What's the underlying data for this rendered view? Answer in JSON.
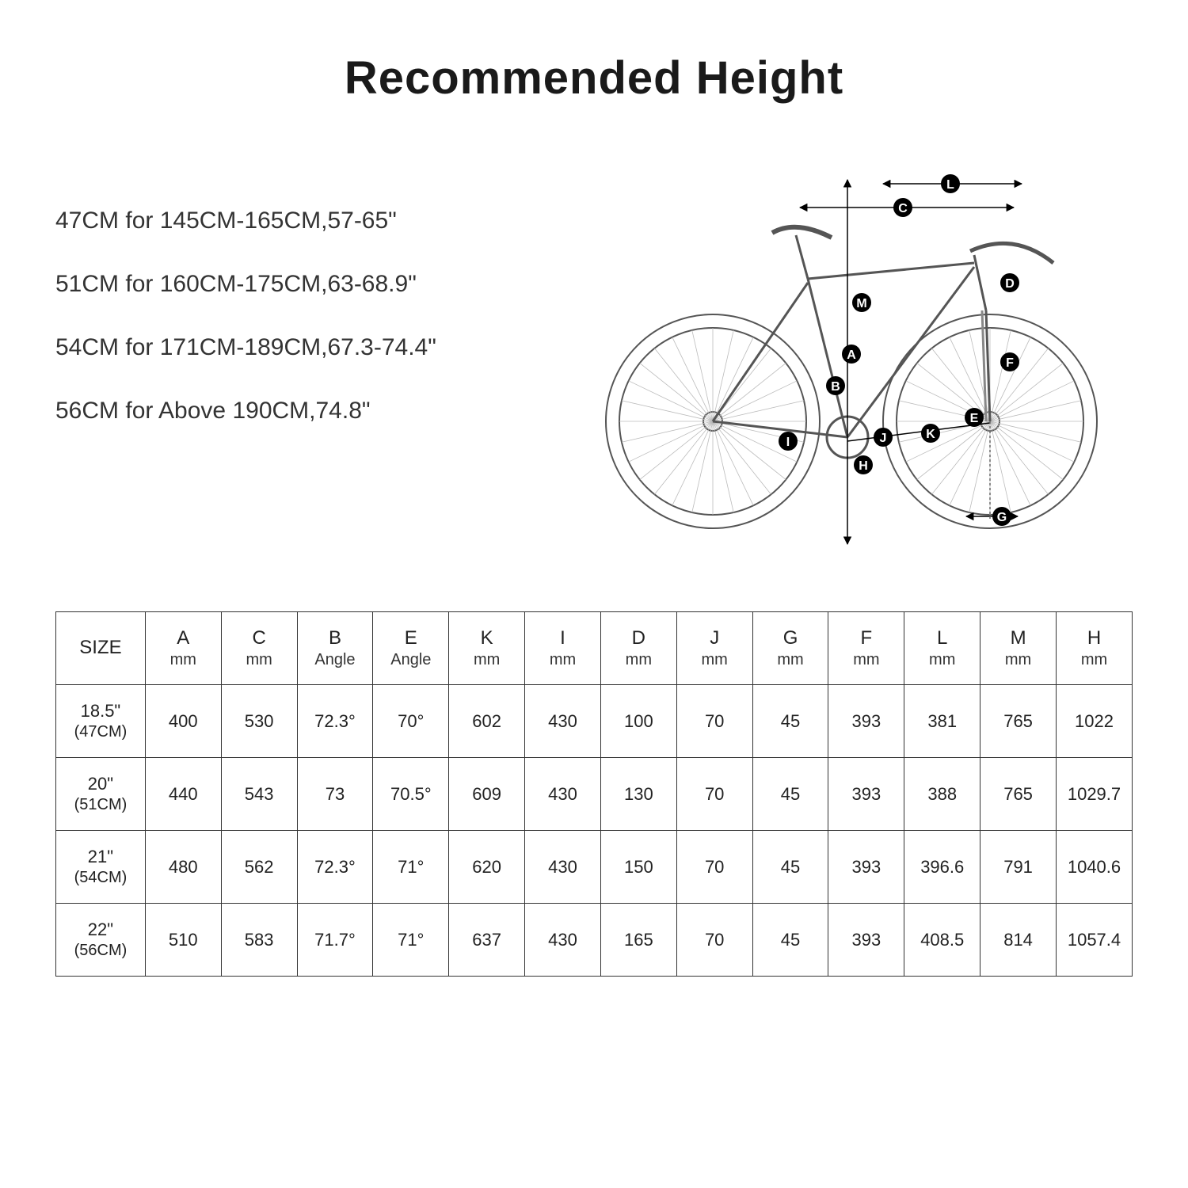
{
  "title": "Recommended  Height",
  "recommendations": [
    "47CM for 145CM-165CM,57-65\"",
    "51CM for 160CM-175CM,63-68.9\"",
    "54CM for 171CM-189CM,67.3-74.4\"",
    "56CM for Above 190CM,74.8\""
  ],
  "diagram": {
    "type": "bike-geometry-sketch",
    "stroke": "#555555",
    "label_fill": "#000000",
    "label_text": "#ffffff",
    "label_radius": 12,
    "labels": [
      "A",
      "B",
      "C",
      "D",
      "E",
      "F",
      "G",
      "H",
      "I",
      "J",
      "K",
      "L",
      "M"
    ]
  },
  "table": {
    "border_color": "#333333",
    "text_color": "#222222",
    "columns": [
      {
        "main": "SIZE",
        "sub": ""
      },
      {
        "main": "A",
        "sub": "mm"
      },
      {
        "main": "C",
        "sub": "mm"
      },
      {
        "main": "B",
        "sub": "Angle"
      },
      {
        "main": "E",
        "sub": "Angle"
      },
      {
        "main": "K",
        "sub": "mm"
      },
      {
        "main": "I",
        "sub": "mm"
      },
      {
        "main": "D",
        "sub": "mm"
      },
      {
        "main": "J",
        "sub": "mm"
      },
      {
        "main": "G",
        "sub": "mm"
      },
      {
        "main": "F",
        "sub": "mm"
      },
      {
        "main": "L",
        "sub": "mm"
      },
      {
        "main": "M",
        "sub": "mm"
      },
      {
        "main": "H",
        "sub": "mm"
      }
    ],
    "rows": [
      {
        "size_main": "18.5\"",
        "size_sub": "(47CM)",
        "cells": [
          "400",
          "530",
          "72.3°",
          "70°",
          "602",
          "430",
          "100",
          "70",
          "45",
          "393",
          "381",
          "765",
          "1022"
        ]
      },
      {
        "size_main": "20\"",
        "size_sub": "(51CM)",
        "cells": [
          "440",
          "543",
          "73",
          "70.5°",
          "609",
          "430",
          "130",
          "70",
          "45",
          "393",
          "388",
          "765",
          "1029.7"
        ]
      },
      {
        "size_main": "21\"",
        "size_sub": "(54CM)",
        "cells": [
          "480",
          "562",
          "72.3°",
          "71°",
          "620",
          "430",
          "150",
          "70",
          "45",
          "393",
          "396.6",
          "791",
          "1040.6"
        ]
      },
      {
        "size_main": "22\"",
        "size_sub": "(56CM)",
        "cells": [
          "510",
          "583",
          "71.7°",
          "71°",
          "637",
          "430",
          "165",
          "70",
          "45",
          "393",
          "408.5",
          "814",
          "1057.4"
        ]
      }
    ]
  }
}
